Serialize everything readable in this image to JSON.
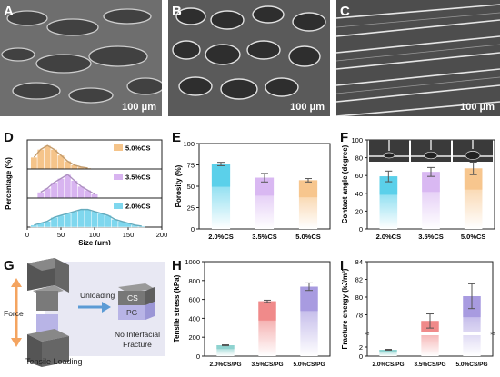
{
  "panel_letters": [
    "A",
    "B",
    "C",
    "D",
    "E",
    "F",
    "G",
    "H",
    "I"
  ],
  "sem": {
    "scale_label": "100 μm",
    "colors": {
      "panel_a": "#6e6e6e",
      "panel_b": "#5a5a5a",
      "panel_c": "#4d4d4d"
    }
  },
  "schematic": {
    "force_label": "Force",
    "unloading_label": "Unloading",
    "cs_label": "CS",
    "pg_label": "PG",
    "no_fracture_label": "No Interfacial Fracture",
    "tensile_label": "Tensile Loading",
    "colors": {
      "force_arrow": "#f4a460",
      "unload_arrow": "#5b9bd5",
      "pg": "#b8b4e6",
      "cs": "#777777"
    }
  },
  "chart_data": [
    {
      "type": "bar",
      "id": "D",
      "subtype": "stacked-histogram",
      "xlabel": "Size (μm)",
      "ylabel": "Percentage (%)",
      "xlim": [
        0,
        200
      ],
      "xticks": [
        "0",
        "50",
        "100",
        "150",
        "200"
      ],
      "series": [
        {
          "name": "5.0%CS",
          "color": "#f5c48a",
          "bins": [
            10,
            20,
            30,
            40,
            50,
            60,
            70,
            80,
            90
          ],
          "values": [
            6,
            10,
            12,
            10,
            7,
            4,
            2,
            1,
            0.5
          ]
        },
        {
          "name": "3.5%CS",
          "color": "#d8b4f0",
          "bins": [
            20,
            30,
            40,
            50,
            60,
            70,
            80,
            90,
            100
          ],
          "values": [
            3,
            5,
            8,
            10,
            12,
            9,
            6,
            4,
            2
          ]
        },
        {
          "name": "2.0%CS",
          "color": "#7fd7ee",
          "bins": [
            10,
            20,
            30,
            40,
            50,
            60,
            70,
            80,
            90,
            100,
            110,
            120,
            130,
            140,
            150,
            160,
            170
          ],
          "values": [
            1,
            2,
            3,
            5,
            6,
            7,
            8,
            9,
            9,
            8,
            7,
            6,
            4,
            3,
            2,
            1,
            0.5
          ]
        }
      ]
    },
    {
      "type": "bar",
      "id": "E",
      "xlabel": "",
      "ylabel": "Porosity (%)",
      "ylim": [
        0,
        100
      ],
      "yticks": [
        "0",
        "25",
        "50",
        "75",
        "100"
      ],
      "categories": [
        "2.0%CS",
        "3.5%CS",
        "5.0%CS"
      ],
      "values": [
        76,
        60,
        57
      ],
      "errors": [
        2,
        5,
        2
      ],
      "colors": [
        "#5bd0ea",
        "#d9b8f2",
        "#f7c68e"
      ]
    },
    {
      "type": "bar",
      "id": "F",
      "xlabel": "",
      "ylabel": "Contact angle (degree)",
      "ylim": [
        0,
        100
      ],
      "yticks": [
        "0",
        "20",
        "40",
        "60",
        "80",
        "100"
      ],
      "categories": [
        "2.0%CS",
        "3.5%CS",
        "5.0%CS"
      ],
      "values": [
        59,
        64,
        68
      ],
      "errors": [
        6,
        5,
        7
      ],
      "colors": [
        "#5bd0ea",
        "#d9b8f2",
        "#f7c68e"
      ]
    },
    {
      "type": "bar",
      "id": "H",
      "xlabel": "",
      "ylabel": "Tensile stress (kPa)",
      "ylim": [
        0,
        1000
      ],
      "yticks": [
        "0",
        "200",
        "400",
        "600",
        "800",
        "1000"
      ],
      "categories": [
        "2.0%CS/PG",
        "3.5%CS/PG",
        "5.0%CS/PG"
      ],
      "values": [
        115,
        580,
        735
      ],
      "errors": [
        5,
        12,
        40
      ],
      "colors": [
        "#8fd3d0",
        "#f08a8a",
        "#a89be0"
      ]
    },
    {
      "type": "bar",
      "id": "I",
      "xlabel": "",
      "ylabel": "Fracture energy (kJ/m³)",
      "axis_break": true,
      "lower_ylim": [
        0,
        4
      ],
      "upper_ylim": [
        76,
        84
      ],
      "yticks_lower": [
        "0",
        "2"
      ],
      "yticks_upper": [
        "78",
        "80",
        "82",
        "84"
      ],
      "categories": [
        "2.0%CS/PG",
        "3.5%CS/PG",
        "5.0%CS/PG"
      ],
      "values": [
        1.4,
        77.3,
        80.1
      ],
      "errors": [
        0.1,
        0.8,
        1.4
      ],
      "colors": [
        "#8fd3d0",
        "#f08a8a",
        "#a89be0"
      ]
    }
  ]
}
